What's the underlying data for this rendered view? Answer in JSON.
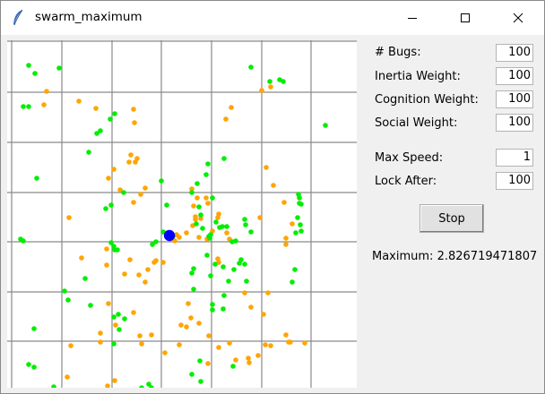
{
  "window": {
    "title": "swarm_maximum",
    "icon": "feather-icon"
  },
  "controls": {
    "minimize_icon": "minimize-icon",
    "maximize_icon": "maximize-icon",
    "close_icon": "close-icon"
  },
  "params": [
    {
      "label": "# Bugs:",
      "value": "100"
    },
    {
      "label": "Inertia Weight:",
      "value": "100"
    },
    {
      "label": "Cognition Weight:",
      "value": "100"
    },
    {
      "label": "Social Weight:",
      "value": "100"
    },
    {
      "label": "Max Speed:",
      "value": "1"
    },
    {
      "label": "Lock After:",
      "value": "100"
    }
  ],
  "stop_label": "Stop",
  "maximum": {
    "label": "Maximum:",
    "value": "2.826719471807"
  },
  "colors": {
    "orange": "#ffa500",
    "green": "#00ee00",
    "blue": "#0000ff",
    "grid": "#8a8a8a"
  }
}
